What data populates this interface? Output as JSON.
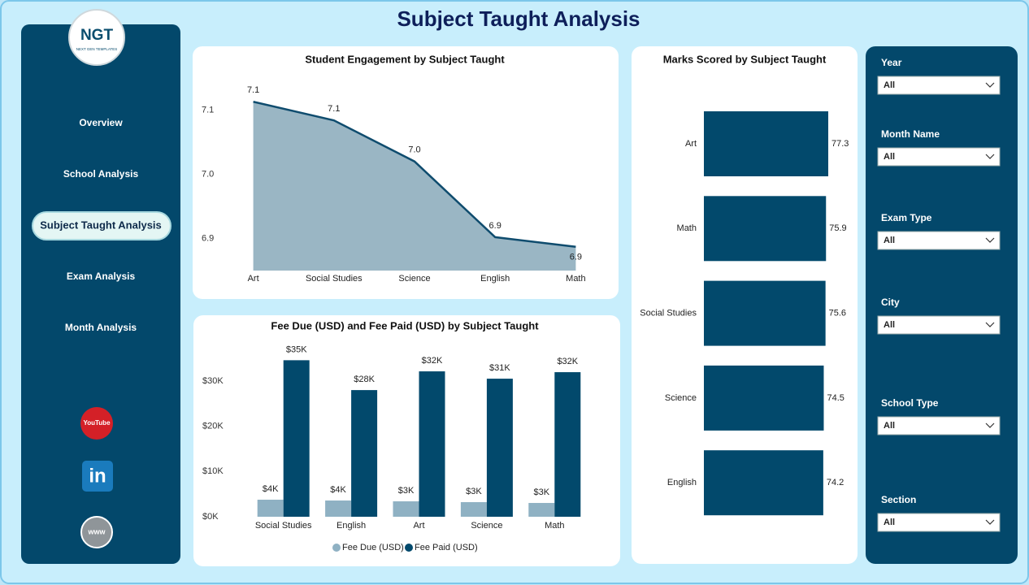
{
  "header": {
    "title": "Subject Taught Analysis"
  },
  "logo": {
    "text": "NGT",
    "subtitle": "NEXT GEN TEMPLATES"
  },
  "nav": {
    "items": [
      "Overview",
      "School Analysis",
      "Subject Taught Analysis",
      "Exam Analysis",
      "Month Analysis"
    ]
  },
  "social": {
    "youtube": "YouTube",
    "linkedin": "in",
    "web": "www"
  },
  "filters": [
    {
      "label": "Year",
      "value": "All"
    },
    {
      "label": "Month Name",
      "value": "All"
    },
    {
      "label": "Exam Type",
      "value": "All"
    },
    {
      "label": "City",
      "value": "All"
    },
    {
      "label": "School Type",
      "value": "All"
    },
    {
      "label": "Section",
      "value": "All"
    }
  ],
  "chart_data": [
    {
      "type": "area",
      "title": "Student Engagement by Subject Taught",
      "categories": [
        "Art",
        "Social Studies",
        "Science",
        "English",
        "Math"
      ],
      "values": [
        7.113,
        7.084,
        7.02,
        6.902,
        6.887
      ],
      "value_labels": [
        "7.1",
        "7.1",
        "7.0",
        "6.9",
        "6.9"
      ],
      "color": "#9ab6c4",
      "line_color": "#0f4c6e",
      "ylim": [
        6.85,
        7.15
      ],
      "yticks": [
        6.9,
        {
          "value": 7.0,
          "label": "7.0"
        },
        7.1
      ]
    },
    {
      "type": "bar",
      "title": "Fee Due (USD) and Fee Paid (USD) by Subject Taught",
      "categories": [
        "Social Studies",
        "English",
        "Art",
        "Science",
        "Math"
      ],
      "series": [
        {
          "name": "Fee Due (USD)",
          "color": "#8fb1c3",
          "values": [
            3770,
            3590,
            3410,
            3230,
            3050
          ],
          "value_labels": [
            "$4K",
            "$4K",
            "$3K",
            "$3K",
            "$3K"
          ]
        },
        {
          "name": "Fee Paid (USD)",
          "color": "#02496c",
          "values": [
            34600,
            28000,
            32140,
            30520,
            31960
          ],
          "value_labels": [
            "$35K",
            "$28K",
            "$32K",
            "$31K",
            "$32K"
          ]
        }
      ],
      "ylim": [
        0,
        37000
      ],
      "yticks": [
        {
          "value": 0,
          "label": "$0K"
        },
        {
          "value": 10000,
          "label": "$10K"
        },
        {
          "value": 20000,
          "label": "$20K"
        },
        {
          "value": 30000,
          "label": "$30K"
        }
      ],
      "legend": "bottom"
    },
    {
      "type": "hbar",
      "title": "Marks Scored by Subject Taught",
      "categories": [
        "Art",
        "Math",
        "Social Studies",
        "Science",
        "English"
      ],
      "values": [
        77.3,
        75.9,
        75.6,
        74.5,
        74.2
      ],
      "color": "#02496c",
      "xlim": [
        0,
        78
      ]
    }
  ]
}
